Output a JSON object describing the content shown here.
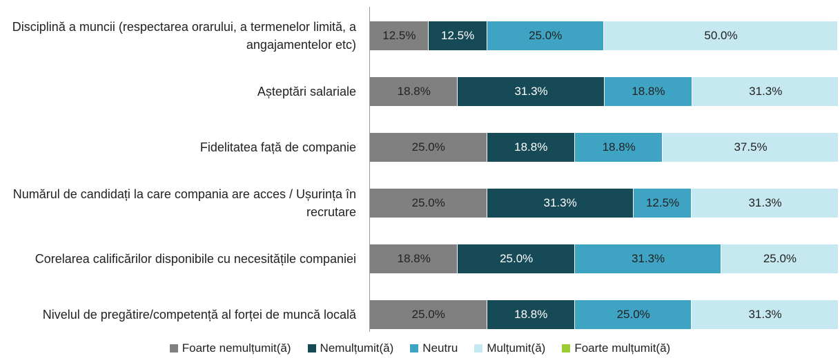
{
  "chart_data": {
    "type": "stacked_bar_horizontal",
    "categories": [
      "Disciplină a muncii (respectarea orarului, a termenelor limită, a angajamentelor etc)",
      "Așteptări salariale",
      "Fidelitatea față de companie",
      "Numărul de candidați la care compania are acces / Ușurința în recrutare",
      "Corelarea calificărilor disponibile cu necesitățile companiei",
      "Nivelul de pregătire/competență al forței de muncă locală"
    ],
    "xlim": [
      0,
      100
    ],
    "legend": "bottom",
    "series": [
      {
        "name": "Foarte nemulțumit(ă)",
        "color": "#808080",
        "label_color": "#222222",
        "values": [
          12.5,
          18.8,
          25.0,
          25.0,
          18.8,
          25.0
        ],
        "value_labels": [
          "12.5%",
          "18.8%",
          "25.0%",
          "25.0%",
          "18.8%",
          "25.0%"
        ]
      },
      {
        "name": "Nemulțumit(ă)",
        "color": "#174a57",
        "label_color": "#ffffff",
        "values": [
          12.5,
          31.3,
          18.8,
          31.3,
          25.0,
          18.8
        ],
        "value_labels": [
          "12.5%",
          "31.3%",
          "18.8%",
          "31.3%",
          "25.0%",
          "18.8%"
        ]
      },
      {
        "name": "Neutru",
        "color": "#3fa3c3",
        "label_color": "#222222",
        "values": [
          25.0,
          18.8,
          18.8,
          12.5,
          31.3,
          25.0
        ],
        "value_labels": [
          "25.0%",
          "18.8%",
          "18.8%",
          "12.5%",
          "31.3%",
          "25.0%"
        ]
      },
      {
        "name": "Mulțumit(ă)",
        "color": "#c6e9f1",
        "label_color": "#222222",
        "values": [
          50.0,
          31.3,
          37.5,
          31.3,
          25.0,
          31.3
        ],
        "value_labels": [
          "50.0%",
          "31.3%",
          "37.5%",
          "31.3%",
          "25.0%",
          "31.3%"
        ]
      },
      {
        "name": "Foarte mulțumit(ă)",
        "color": "#9acd32",
        "label_color": "#222222",
        "values": [
          0,
          0,
          0,
          0,
          0,
          0
        ]
      }
    ]
  }
}
